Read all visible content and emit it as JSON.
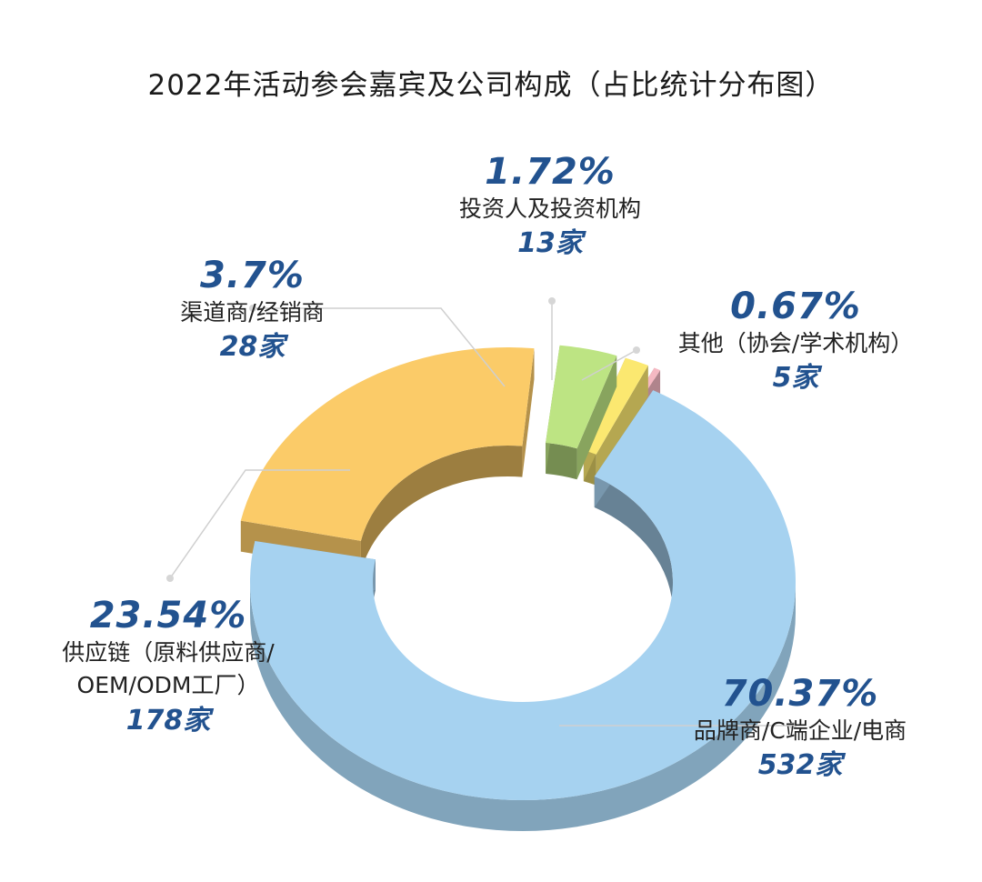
{
  "chart_data": {
    "type": "pie",
    "title": "2022年活动参会嘉宾及公司构成（占比统计分布图）",
    "slices": [
      {
        "name": "品牌商/C端企业/电商",
        "value": 70.37,
        "pct_label": "70.37%",
        "count_label": "532家",
        "color": "#a6d2f0"
      },
      {
        "name": "供应链（原料供应商/OEM/ODM工厂）",
        "name_lines": [
          "供应链（原料供应商/",
          "OEM/ODM工厂）"
        ],
        "value": 23.54,
        "pct_label": "23.54%",
        "count_label": "178家",
        "color": "#fbcb68"
      },
      {
        "name": "渠道商/经销商",
        "value": 3.7,
        "pct_label": "3.7%",
        "count_label": "28家",
        "color": "#bde483"
      },
      {
        "name": "投资人及投资机构",
        "value": 1.72,
        "pct_label": "1.72%",
        "count_label": "13家",
        "color": "#fbe870"
      },
      {
        "name": "其他（协会/学术机构）",
        "value": 0.67,
        "pct_label": "0.67%",
        "count_label": "5家",
        "color": "#f5b8c2"
      }
    ]
  }
}
